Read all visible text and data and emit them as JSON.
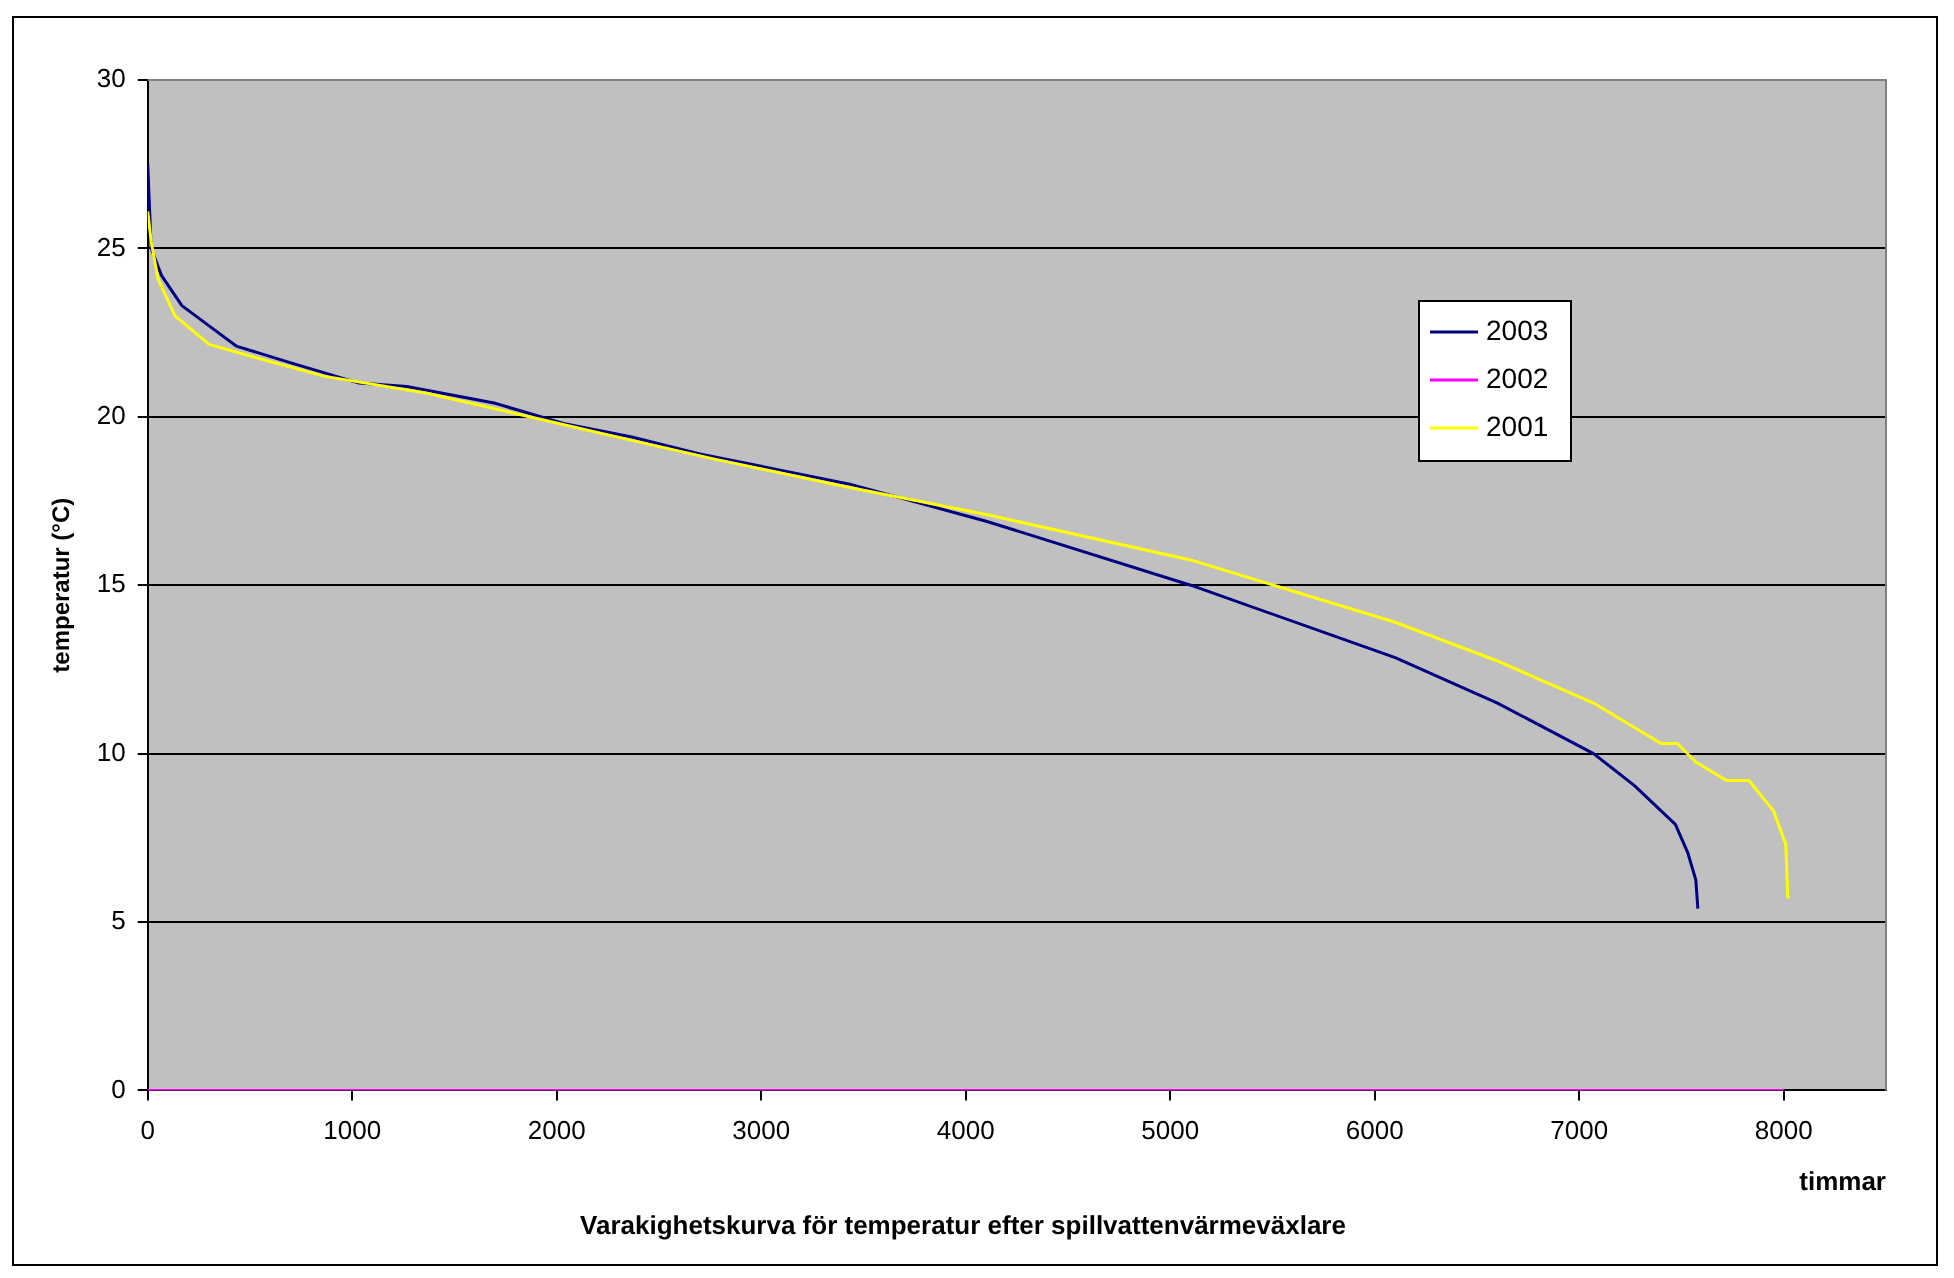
{
  "chart_data": {
    "type": "line",
    "title": "Varakighetskurva för temperatur efter spillvattenvärmeväxlare",
    "xlabel": "timmar",
    "ylabel": "temperatur (°C)",
    "xlim": [
      0,
      8500
    ],
    "xticks": [
      0,
      1000,
      2000,
      3000,
      4000,
      5000,
      6000,
      7000,
      8000
    ],
    "ylim": [
      0,
      30
    ],
    "yticks": [
      0,
      5,
      10,
      15,
      20,
      25,
      30
    ],
    "grid": "y",
    "legend": "right",
    "marker": "none",
    "line_style": "solid",
    "series": [
      {
        "name": "2003",
        "color": "#000080",
        "x": [
          0,
          17,
          67,
          167,
          300,
          433,
          700,
          1033,
          1267,
          1700,
          2033,
          2367,
          2700,
          3433,
          4100,
          5100,
          6100,
          6600,
          7070,
          7270,
          7470,
          7530,
          7570,
          7580
        ],
        "values": [
          27.5,
          25,
          24.2,
          23.3,
          22.7,
          22.1,
          21.6,
          21,
          20.9,
          20.4,
          19.8,
          19.4,
          18.9,
          18,
          16.9,
          15,
          12.85,
          11.5,
          10,
          9.05,
          7.9,
          7.07,
          6.25,
          5.4
        ]
      },
      {
        "name": "2002",
        "color": "#ff00ff",
        "x": [
          0,
          8000
        ],
        "values": [
          0,
          0
        ]
      },
      {
        "name": "2001",
        "color": "#ffff00",
        "x": [
          0,
          17,
          50,
          133,
          300,
          533,
          867,
          1367,
          1867,
          2367,
          2767,
          3433,
          4100,
          5100,
          6100,
          6600,
          7070,
          7400,
          7480,
          7570,
          7720,
          7830,
          7950,
          8010,
          8020
        ],
        "values": [
          26.1,
          25.2,
          24.1,
          23,
          22.15,
          21.75,
          21.2,
          20.7,
          20,
          19.3,
          18.75,
          17.9,
          17.1,
          15.75,
          13.9,
          12.75,
          11.5,
          10.3,
          10.3,
          9.75,
          9.2,
          9.2,
          8.3,
          7.3,
          5.7
        ]
      }
    ]
  }
}
